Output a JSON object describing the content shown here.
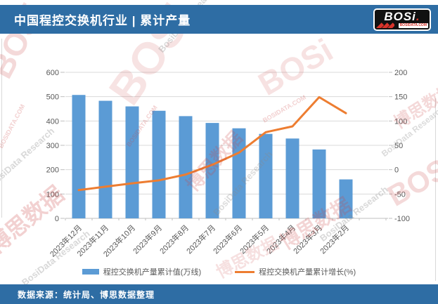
{
  "header": {
    "title": "中国程控交换机行业 | 累计产量",
    "logo": {
      "text": "BOSi",
      "domain": "BOSIDATA.COM"
    }
  },
  "footer": {
    "source": "数据来源：统计局、博思数据整理"
  },
  "watermarks": {
    "brand": "BOSi",
    "cn": "博思数据",
    "research": "BosiData Research",
    "domain": "BOSIDATA.COM"
  },
  "chart_data": {
    "type": "bar",
    "subtype": "bar+line combo, dual axis",
    "categories": [
      "2023年12月",
      "2023年11月",
      "2023年10月",
      "2023年9月",
      "2023年8月",
      "2023年7月",
      "2023年6月",
      "2023年5月",
      "2023年4月",
      "2023年3月",
      "2023年2月"
    ],
    "series": [
      {
        "name": "程控交换机产量累计值(万线)",
        "type": "bar",
        "axis": "left",
        "values": [
          507,
          483,
          460,
          442,
          420,
          392,
          370,
          347,
          328,
          283,
          160
        ],
        "color": "#5b9bd5"
      },
      {
        "name": "程控交换机产量累计增长(%)",
        "type": "line",
        "axis": "right",
        "values": [
          -42,
          -35,
          -28,
          -22,
          -10,
          10,
          35,
          77,
          89,
          149,
          116
        ],
        "color": "#ed7d31"
      }
    ],
    "left_axis": {
      "min": 0,
      "max": 600,
      "step": 100
    },
    "right_axis": {
      "min": -100,
      "max": 200,
      "step": 50
    },
    "grid": true,
    "legend_position": "bottom",
    "title": "中国程控交换机行业 | 累计产量"
  }
}
